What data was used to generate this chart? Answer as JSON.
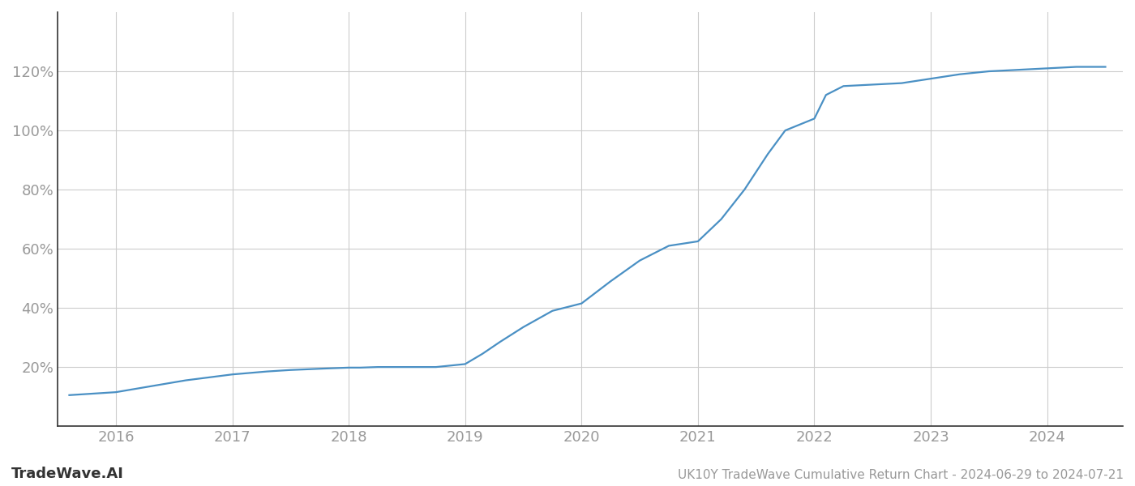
{
  "title": "UK10Y TradeWave Cumulative Return Chart - 2024-06-29 to 2024-07-21",
  "watermark": "TradeWave.AI",
  "line_color": "#4a90c4",
  "background_color": "#ffffff",
  "grid_color": "#cccccc",
  "axis_color": "#333333",
  "x_values": [
    2015.6,
    2016.0,
    2016.3,
    2016.6,
    2016.9,
    2017.0,
    2017.3,
    2017.5,
    2017.8,
    2018.0,
    2018.1,
    2018.25,
    2018.5,
    2018.75,
    2019.0,
    2019.15,
    2019.3,
    2019.5,
    2019.75,
    2020.0,
    2020.25,
    2020.5,
    2020.75,
    2021.0,
    2021.2,
    2021.4,
    2021.6,
    2021.75,
    2022.0,
    2022.1,
    2022.25,
    2022.5,
    2022.75,
    2023.0,
    2023.25,
    2023.5,
    2023.75,
    2024.0,
    2024.25,
    2024.5
  ],
  "y_values": [
    0.105,
    0.115,
    0.135,
    0.155,
    0.17,
    0.175,
    0.185,
    0.19,
    0.195,
    0.198,
    0.198,
    0.2,
    0.2,
    0.2,
    0.21,
    0.245,
    0.285,
    0.335,
    0.39,
    0.415,
    0.49,
    0.56,
    0.61,
    0.625,
    0.7,
    0.8,
    0.92,
    1.0,
    1.04,
    1.12,
    1.15,
    1.155,
    1.16,
    1.175,
    1.19,
    1.2,
    1.205,
    1.21,
    1.215,
    1.215
  ],
  "xlim": [
    2015.5,
    2024.65
  ],
  "ylim": [
    0.0,
    1.4
  ],
  "yticks": [
    0.2,
    0.4,
    0.6,
    0.8,
    1.0,
    1.2
  ],
  "ytick_labels": [
    "20%",
    "40%",
    "60%",
    "80%",
    "100%",
    "120%"
  ],
  "xticks": [
    2016,
    2017,
    2018,
    2019,
    2020,
    2021,
    2022,
    2023,
    2024
  ],
  "xtick_labels": [
    "2016",
    "2017",
    "2018",
    "2019",
    "2020",
    "2021",
    "2022",
    "2023",
    "2024"
  ],
  "line_width": 1.6,
  "tick_color": "#999999",
  "spine_color": "#333333",
  "label_fontsize": 13,
  "title_fontsize": 11,
  "watermark_fontsize": 13
}
